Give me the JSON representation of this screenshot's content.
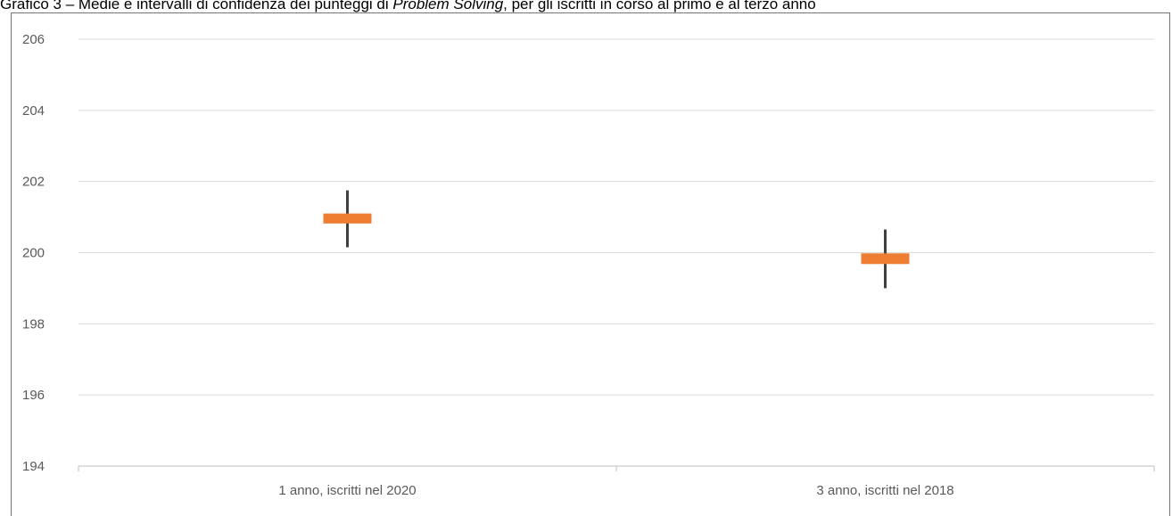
{
  "chart_data": {
    "type": "candlestick",
    "title_parts": [
      "Grafico 3 – Medie e intervalli di confidenza dei punteggi di ",
      "Problem Solving",
      ", per gli iscritti in corso al primo e al terzo anno"
    ],
    "categories": [
      "1 anno, iscritti nel 2020",
      "3 anno, iscritti nel 2018"
    ],
    "series": [
      {
        "high": [
          201.75,
          200.65
        ],
        "low": [
          200.15,
          199.0
        ],
        "open": [
          200.82,
          199.68
        ],
        "close": [
          201.1,
          199.98
        ]
      }
    ],
    "y_ticks": [
      "194",
      "196",
      "198",
      "200",
      "202",
      "204",
      "206"
    ],
    "ylim": [
      194,
      206
    ],
    "grid": true,
    "legend": "none",
    "colors": {
      "box": "#ED7D31",
      "whisker": "#404040",
      "grid": "#D9D9D9",
      "axis": "#BFBFBF"
    }
  }
}
